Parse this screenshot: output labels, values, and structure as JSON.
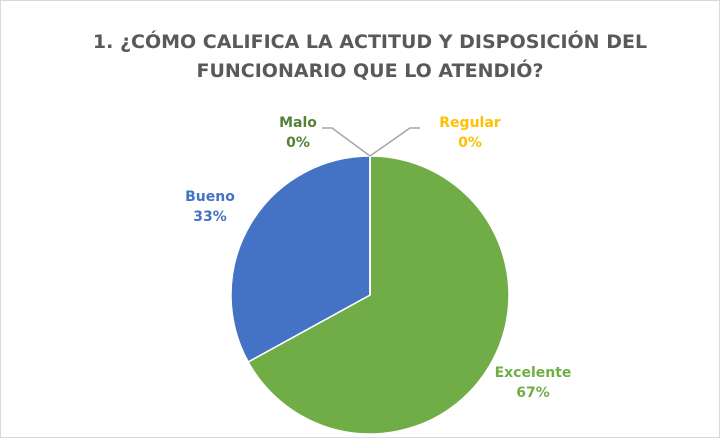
{
  "chart_data": {
    "type": "pie",
    "title": "1. ¿CÓMO CALIFICA LA ACTITUD Y DISPOSICIÓN DEL FUNCIONARIO QUE LO ATENDIÓ?",
    "categories": [
      "Excelente",
      "Bueno",
      "Malo",
      "Regular"
    ],
    "values": [
      67,
      33,
      0,
      0
    ],
    "value_labels": [
      "67%",
      "33%",
      "0%",
      "0%"
    ],
    "colors": [
      "#70ad47",
      "#4472c4",
      "#548235",
      "#ffc000"
    ]
  }
}
